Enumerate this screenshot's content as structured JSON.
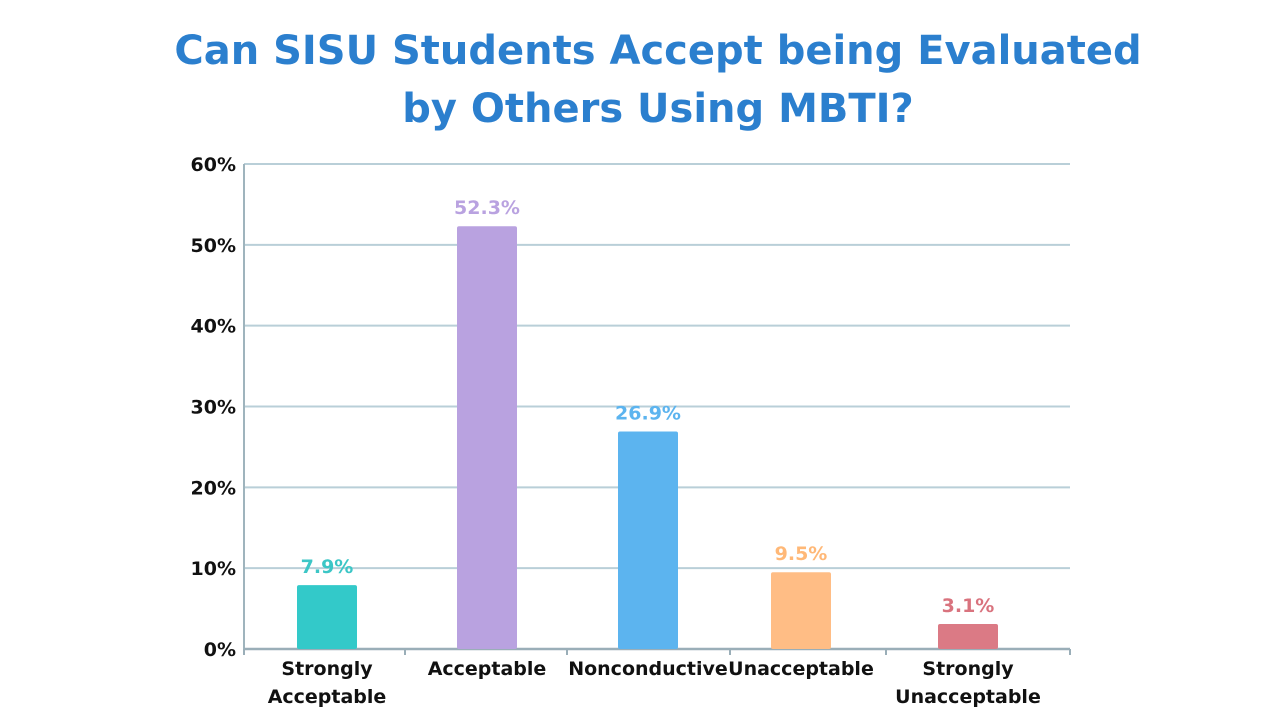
{
  "chart_data": {
    "type": "bar",
    "title_lines": [
      "Can SISU Students Accept being Evaluated",
      "by Others Using MBTI?"
    ],
    "categories": [
      [
        "Strongly",
        "Acceptable"
      ],
      [
        "Acceptable"
      ],
      [
        "Nonconductive"
      ],
      [
        "Unacceptable"
      ],
      [
        "Strongly",
        "Unacceptable"
      ]
    ],
    "values": [
      7.9,
      52.3,
      26.9,
      9.5,
      3.1
    ],
    "data_labels": [
      "7.9%",
      "52.3%",
      "26.9%",
      "9.5%",
      "3.1%"
    ],
    "colors": [
      "#33c9c9",
      "#b9a2e0",
      "#5cb4ef",
      "#ffbd85",
      "#db7a85"
    ],
    "label_colors": [
      "#3cc6c6",
      "#b9a2e0",
      "#5cb4ef",
      "#ffb877",
      "#d9737e"
    ],
    "ylim": [
      0,
      60
    ],
    "yticks": [
      0,
      10,
      20,
      30,
      40,
      50,
      60
    ],
    "ytick_labels": [
      "0%",
      "10%",
      "20%",
      "30%",
      "40%",
      "50%",
      "60%"
    ],
    "grid": true,
    "xlabel": "",
    "ylabel": ""
  }
}
